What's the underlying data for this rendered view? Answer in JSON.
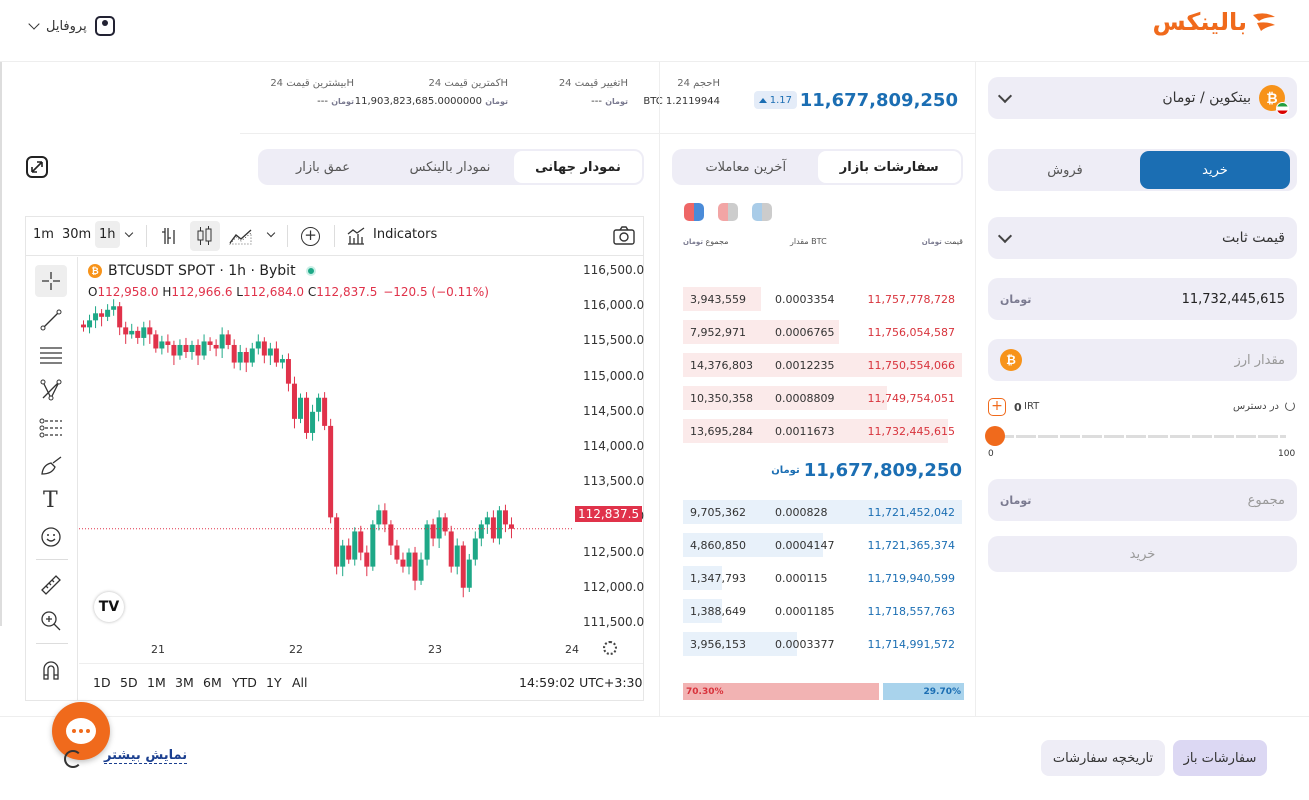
{
  "header": {
    "logo_text": "بالینکس",
    "profile_label": "پروفایل"
  },
  "market": {
    "pair_label": "بیتکوین / تومان",
    "last_price": "11,677,809,250",
    "change_badge": "1.17",
    "stats": [
      {
        "label": "حجم 24H",
        "value": "1.2119944",
        "unit": "BTC"
      },
      {
        "label": "تغییر قیمت 24H",
        "value": "---"
      },
      {
        "label": "کمترین قیمت 24H",
        "value": "11,903,823,685.0000000"
      },
      {
        "label": "بیشترین قیمت 24H",
        "value": "---"
      }
    ],
    "currency_unit": "تومان"
  },
  "trade": {
    "buy_tab": "خرید",
    "sell_tab": "فروش",
    "order_type": "قیمت ثابت",
    "price_value": "11,732,445,615",
    "amount_placeholder": "مقدار ارز",
    "available_label": "در دسترس",
    "available_value": "0",
    "available_unit": "IRT",
    "slider_min": "0",
    "slider_max": "100",
    "total_placeholder": "مجموع",
    "submit_label": "خرید"
  },
  "orderbook": {
    "tab_market_orders": "سفارشات بازار",
    "tab_last_trades": "آخرین معاملات",
    "col_price": "قیمت",
    "col_amount": "مقدار",
    "col_amount_unit": "BTC",
    "col_total": "مجموع",
    "asks": [
      {
        "total": "3,943,559",
        "amount": "0.0003354",
        "price": "11,757,778,728",
        "fill": 0.28
      },
      {
        "total": "7,952,971",
        "amount": "0.0006765",
        "price": "11,756,054,587",
        "fill": 0.56
      },
      {
        "total": "14,376,803",
        "amount": "0.0012235",
        "price": "11,750,554,066",
        "fill": 1.0
      },
      {
        "total": "10,350,358",
        "amount": "0.0008809",
        "price": "11,749,754,051",
        "fill": 0.73
      },
      {
        "total": "13,695,284",
        "amount": "0.0011673",
        "price": "11,732,445,615",
        "fill": 0.95
      }
    ],
    "mid_price": "11,677,809,250",
    "bids": [
      {
        "total": "9,705,362",
        "amount": "0.000828",
        "price": "11,721,452,042",
        "fill": 1.0
      },
      {
        "total": "4,860,850",
        "amount": "0.0004147",
        "price": "11,721,365,374",
        "fill": 0.5
      },
      {
        "total": "1,347,793",
        "amount": "0.000115",
        "price": "11,719,940,599",
        "fill": 0.14
      },
      {
        "total": "1,388,649",
        "amount": "0.0001185",
        "price": "11,718,557,763",
        "fill": 0.14
      },
      {
        "total": "3,956,153",
        "amount": "0.0003377",
        "price": "11,714,991,572",
        "fill": 0.41
      }
    ],
    "sell_pct": "70.30%",
    "buy_pct": "29.70%",
    "sell_ratio": 0.703
  },
  "chart_tabs": {
    "global": "نمودار جهانی",
    "balinex": "نمودار بالینکس",
    "depth": "عمق بازار"
  },
  "tv": {
    "timeframes": [
      "1m",
      "30m",
      "1h"
    ],
    "indicators_label": "Indicators",
    "symbol_title": "BTCUSDT SPOT · 1h · Bybit",
    "ohlc": {
      "o_label": "O",
      "o": "112,958.0",
      "h_label": "H",
      "h": "112,966.6",
      "l_label": "L",
      "l": "112,684.0",
      "c_label": "C",
      "c": "112,837.5",
      "chg": "−120.5 (−0.11%)"
    },
    "current_price_tag": "112,837.5",
    "ranges": [
      "1D",
      "5D",
      "1M",
      "3M",
      "6M",
      "YTD",
      "1Y",
      "All"
    ],
    "clock": "14:59:02 UTC+3:30",
    "x_ticks": [
      "21",
      "22",
      "23",
      "24"
    ]
  },
  "chart_data": {
    "type": "candlestick",
    "title": "BTCUSDT SPOT · 1h · Bybit",
    "y_ticks": [
      116500,
      116000,
      115500,
      115000,
      114500,
      114000,
      113500,
      113000,
      112500,
      112000,
      111500
    ],
    "ylim": [
      111300,
      116700
    ],
    "x_ticks": [
      "21",
      "22",
      "23",
      "24"
    ],
    "close_approx": [
      115700,
      115800,
      115900,
      115850,
      115950,
      116000,
      115700,
      115600,
      115650,
      115550,
      115700,
      115600,
      115400,
      115500,
      115450,
      115300,
      115450,
      115350,
      115450,
      115300,
      115500,
      115450,
      115400,
      115600,
      115450,
      115200,
      115350,
      115200,
      115400,
      115500,
      115300,
      115400,
      115200,
      115250,
      114900,
      114400,
      114700,
      114200,
      114500,
      114700,
      114300,
      113000,
      112300,
      112600,
      112400,
      112800,
      112500,
      112300,
      112900,
      113100,
      112900,
      112600,
      112400,
      112300,
      112500,
      112100,
      112400,
      112900,
      112700,
      113000,
      112800,
      112300,
      112600,
      112000,
      112400,
      112700,
      112900,
      113000,
      112700,
      113100,
      112900,
      112838
    ]
  },
  "bottom": {
    "open_orders": "سفارشات باز",
    "order_history": "تاریخچه سفارشات",
    "show_more": "نمایش بیشتر"
  }
}
